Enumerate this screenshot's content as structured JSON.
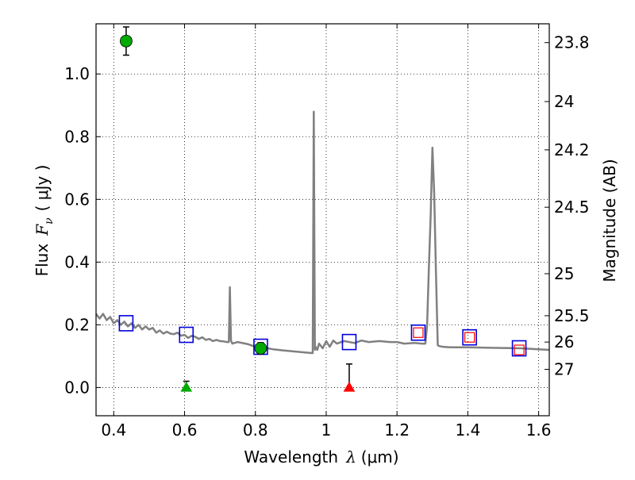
{
  "chart_data": {
    "type": "scatter",
    "xlabel_text": "Wavelength",
    "xlabel_symbol": "λ",
    "xlabel_unit": "(μm)",
    "ylabel_text": "Flux",
    "ylabel_symbol": "F",
    "ylabel_subscript": "ν",
    "ylabel_unit": "( μJy )",
    "y2label": "Magnitude (AB)",
    "xlim": [
      0.35,
      1.63
    ],
    "ylim": [
      -0.09,
      1.16
    ],
    "grid": true,
    "x_ticks": [
      {
        "value": 0.4,
        "label": "0.4"
      },
      {
        "value": 0.6,
        "label": "0.6"
      },
      {
        "value": 0.8,
        "label": "0.8"
      },
      {
        "value": 1.0,
        "label": "1"
      },
      {
        "value": 1.2,
        "label": "1.2"
      },
      {
        "value": 1.4,
        "label": "1.4"
      },
      {
        "value": 1.6,
        "label": "1.6"
      }
    ],
    "y_ticks": [
      {
        "value": 0.0,
        "label": "0.0"
      },
      {
        "value": 0.2,
        "label": "0.2"
      },
      {
        "value": 0.4,
        "label": "0.4"
      },
      {
        "value": 0.6,
        "label": "0.6"
      },
      {
        "value": 0.8,
        "label": "0.8"
      },
      {
        "value": 1.0,
        "label": "1.0"
      }
    ],
    "y2_ticks": [
      {
        "flux": 1.1,
        "label": "23.8"
      },
      {
        "flux": 0.912,
        "label": "24"
      },
      {
        "flux": 0.758,
        "label": "24.2"
      },
      {
        "flux": 0.575,
        "label": "24.5"
      },
      {
        "flux": 0.363,
        "label": "25"
      },
      {
        "flux": 0.229,
        "label": "25.5"
      },
      {
        "flux": 0.145,
        "label": "26"
      },
      {
        "flux": 0.058,
        "label": "27"
      }
    ],
    "series": [
      {
        "kind": "model_spectrum",
        "color": "#808080",
        "x": [
          0.35,
          0.36,
          0.37,
          0.38,
          0.39,
          0.4,
          0.41,
          0.42,
          0.43,
          0.44,
          0.45,
          0.46,
          0.47,
          0.48,
          0.49,
          0.5,
          0.51,
          0.52,
          0.53,
          0.54,
          0.55,
          0.56,
          0.57,
          0.58,
          0.59,
          0.6,
          0.61,
          0.62,
          0.63,
          0.64,
          0.65,
          0.66,
          0.67,
          0.68,
          0.69,
          0.7,
          0.71,
          0.72,
          0.725,
          0.728,
          0.731,
          0.735,
          0.75,
          0.78,
          0.8,
          0.82,
          0.85,
          0.88,
          0.91,
          0.94,
          0.96,
          0.962,
          0.965,
          0.968,
          0.97,
          0.975,
          0.98,
          0.99,
          1.0,
          1.01,
          1.02,
          1.03,
          1.05,
          1.08,
          1.1,
          1.12,
          1.15,
          1.18,
          1.2,
          1.22,
          1.25,
          1.27,
          1.28,
          1.285,
          1.29,
          1.295,
          1.3,
          1.305,
          1.31,
          1.315,
          1.32,
          1.33,
          1.35,
          1.38,
          1.4,
          1.45,
          1.5,
          1.55,
          1.6,
          1.63
        ],
        "y": [
          0.235,
          0.22,
          0.235,
          0.215,
          0.225,
          0.205,
          0.215,
          0.2,
          0.21,
          0.195,
          0.205,
          0.19,
          0.2,
          0.185,
          0.195,
          0.185,
          0.19,
          0.175,
          0.182,
          0.172,
          0.178,
          0.172,
          0.17,
          0.175,
          0.165,
          0.168,
          0.158,
          0.165,
          0.162,
          0.155,
          0.16,
          0.152,
          0.155,
          0.148,
          0.152,
          0.148,
          0.147,
          0.145,
          0.145,
          0.32,
          0.15,
          0.14,
          0.145,
          0.138,
          0.13,
          0.128,
          0.122,
          0.118,
          0.115,
          0.112,
          0.11,
          0.11,
          0.88,
          0.12,
          0.13,
          0.12,
          0.14,
          0.125,
          0.148,
          0.13,
          0.15,
          0.14,
          0.148,
          0.142,
          0.15,
          0.145,
          0.148,
          0.145,
          0.145,
          0.14,
          0.142,
          0.14,
          0.14,
          0.2,
          0.38,
          0.55,
          0.765,
          0.62,
          0.36,
          0.135,
          0.132,
          0.13,
          0.128,
          0.128,
          0.128,
          0.127,
          0.126,
          0.125,
          0.122,
          0.12
        ]
      },
      {
        "kind": "model_filter_points",
        "color": "#0000dd",
        "marker": "open-square",
        "x": [
          0.435,
          0.605,
          0.815,
          1.065,
          1.26,
          1.405,
          1.545
        ],
        "y": [
          0.205,
          0.168,
          0.13,
          0.145,
          0.175,
          0.16,
          0.125
        ]
      },
      {
        "kind": "observed_points",
        "color": "#ff0000",
        "marker": "small-open-square",
        "x": [
          1.26,
          1.405,
          1.545
        ],
        "y": [
          0.175,
          0.16,
          0.12
        ]
      },
      {
        "kind": "detections",
        "color": "#00aa00",
        "marker": "circle",
        "x": [
          0.435,
          0.815
        ],
        "y": [
          1.105,
          0.125
        ],
        "yerr": [
          0.045,
          0.018
        ]
      },
      {
        "kind": "upper_limits",
        "marker": "triangle",
        "points": [
          {
            "x": 0.605,
            "y": 0.0,
            "color": "#00aa00",
            "err_top": 0.02
          },
          {
            "x": 1.065,
            "y": 0.0,
            "color": "#ff0000",
            "err_top": 0.075
          }
        ]
      }
    ]
  }
}
